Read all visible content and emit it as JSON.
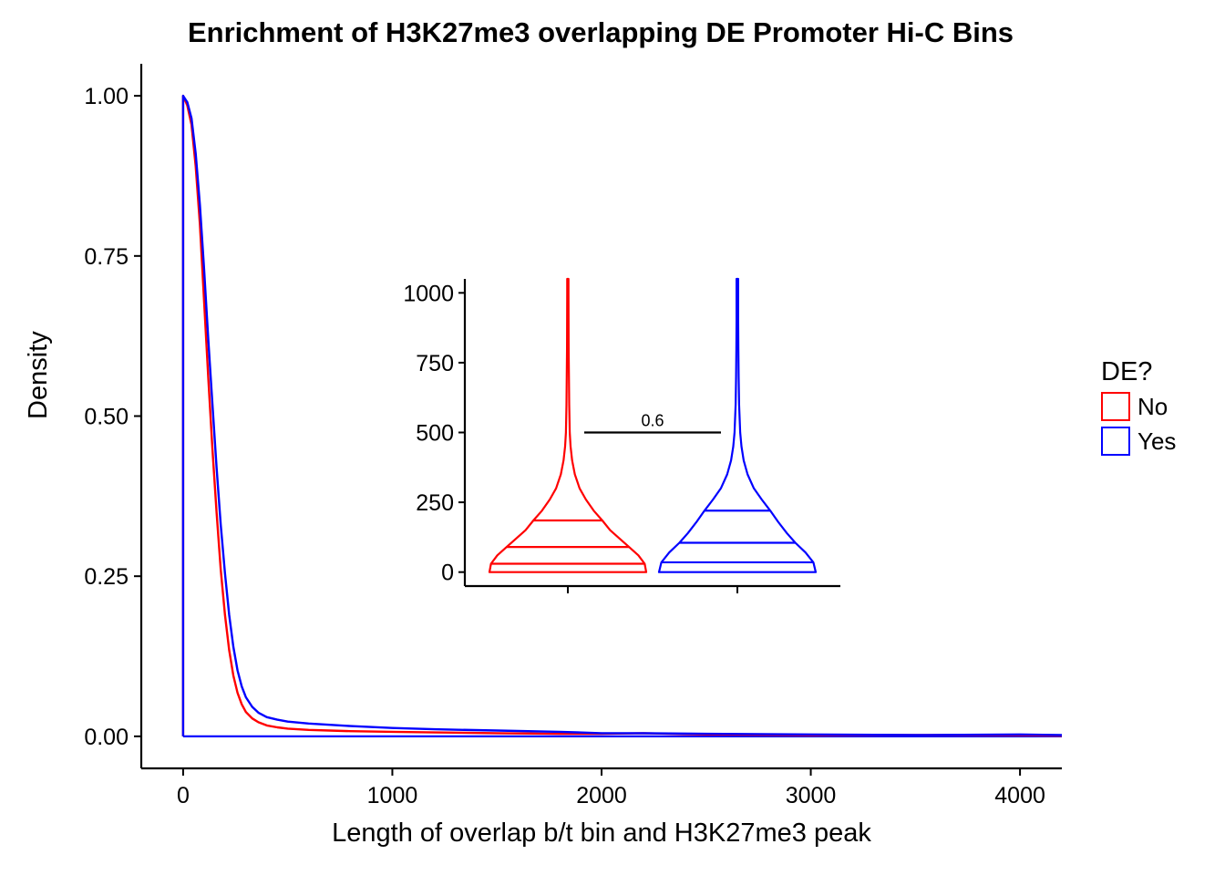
{
  "chart_data": [
    {
      "type": "line",
      "title": "Enrichment of H3K27me3 overlapping DE Promoter Hi-C Bins",
      "xlabel": "Length of overlap b/t bin and H3K27me3 peak",
      "ylabel": "Density",
      "xlim": [
        -200,
        4200
      ],
      "ylim": [
        -0.05,
        1.05
      ],
      "xticks": [
        0,
        1000,
        2000,
        3000,
        4000
      ],
      "yticks": [
        0.0,
        0.25,
        0.5,
        0.75,
        1.0
      ],
      "xtick_labels": [
        "0",
        "1000",
        "2000",
        "3000",
        "4000"
      ],
      "ytick_labels": [
        "0.00",
        "0.25",
        "0.50",
        "0.75",
        "1.00"
      ],
      "grid": false,
      "legend": {
        "title": "DE?",
        "placement": "right",
        "entries": [
          {
            "label": "No",
            "color": "#ff0000"
          },
          {
            "label": "Yes",
            "color": "#0000ff"
          }
        ]
      },
      "series": [
        {
          "name": "No",
          "color": "#ff0000",
          "x": [
            0,
            0,
            20,
            40,
            60,
            80,
            100,
            120,
            140,
            160,
            180,
            200,
            220,
            240,
            260,
            280,
            300,
            330,
            360,
            400,
            450,
            500,
            600,
            700,
            800,
            1000,
            1200,
            1500,
            1800,
            2000,
            2200,
            2500,
            3000,
            3500,
            4000,
            4200
          ],
          "y": [
            0,
            1.0,
            0.985,
            0.955,
            0.89,
            0.8,
            0.68,
            0.56,
            0.45,
            0.35,
            0.26,
            0.19,
            0.135,
            0.095,
            0.068,
            0.05,
            0.038,
            0.028,
            0.022,
            0.017,
            0.014,
            0.012,
            0.01,
            0.009,
            0.008,
            0.007,
            0.006,
            0.005,
            0.004,
            0.004,
            0.005,
            0.003,
            0.002,
            0.002,
            0.002,
            0.001
          ]
        },
        {
          "name": "Yes",
          "color": "#0000ff",
          "x": [
            0,
            0,
            20,
            40,
            60,
            80,
            100,
            120,
            140,
            160,
            180,
            200,
            220,
            240,
            260,
            280,
            300,
            330,
            360,
            400,
            450,
            500,
            600,
            700,
            800,
            1000,
            1200,
            1500,
            1800,
            2000,
            2200,
            2500,
            3000,
            3500,
            4000,
            4200
          ],
          "y": [
            0,
            1.0,
            0.99,
            0.965,
            0.91,
            0.83,
            0.73,
            0.62,
            0.52,
            0.42,
            0.33,
            0.255,
            0.19,
            0.14,
            0.103,
            0.078,
            0.061,
            0.046,
            0.037,
            0.03,
            0.026,
            0.023,
            0.02,
            0.018,
            0.016,
            0.013,
            0.011,
            0.009,
            0.007,
            0.005,
            0.005,
            0.004,
            0.003,
            0.002,
            0.003,
            0.002
          ]
        }
      ],
      "baseline": {
        "x": [
          0,
          4200
        ],
        "y": [
          0,
          0
        ],
        "color": "#0000ff"
      }
    },
    {
      "type": "violin",
      "title": "",
      "ylim": [
        -50,
        1050
      ],
      "yticks": [
        0,
        250,
        500,
        750,
        1000
      ],
      "ytick_labels": [
        "0",
        "250",
        "500",
        "750",
        "1000"
      ],
      "groups": [
        {
          "name": "No",
          "color": "#ff0000",
          "quantiles": [
            30,
            90,
            185
          ],
          "profile": [
            [
              0,
              1.0
            ],
            [
              30,
              0.98
            ],
            [
              60,
              0.9
            ],
            [
              90,
              0.78
            ],
            [
              120,
              0.66
            ],
            [
              150,
              0.54
            ],
            [
              185,
              0.44
            ],
            [
              220,
              0.33
            ],
            [
              260,
              0.23
            ],
            [
              300,
              0.15
            ],
            [
              350,
              0.09
            ],
            [
              400,
              0.055
            ],
            [
              450,
              0.035
            ],
            [
              500,
              0.025
            ],
            [
              600,
              0.018
            ],
            [
              700,
              0.014
            ],
            [
              800,
              0.011
            ],
            [
              900,
              0.009
            ],
            [
              1000,
              0.008
            ],
            [
              1050,
              0.008
            ]
          ]
        },
        {
          "name": "Yes",
          "color": "#0000ff",
          "quantiles": [
            35,
            105,
            220
          ],
          "profile": [
            [
              0,
              1.0
            ],
            [
              35,
              0.97
            ],
            [
              70,
              0.87
            ],
            [
              105,
              0.74
            ],
            [
              140,
              0.63
            ],
            [
              180,
              0.52
            ],
            [
              220,
              0.42
            ],
            [
              260,
              0.31
            ],
            [
              300,
              0.21
            ],
            [
              350,
              0.13
            ],
            [
              400,
              0.08
            ],
            [
              450,
              0.052
            ],
            [
              500,
              0.036
            ],
            [
              600,
              0.022
            ],
            [
              700,
              0.016
            ],
            [
              800,
              0.013
            ],
            [
              900,
              0.011
            ],
            [
              1000,
              0.01
            ],
            [
              1050,
              0.01
            ]
          ]
        }
      ],
      "annotation": {
        "label": "0.6",
        "y": 500
      }
    }
  ]
}
